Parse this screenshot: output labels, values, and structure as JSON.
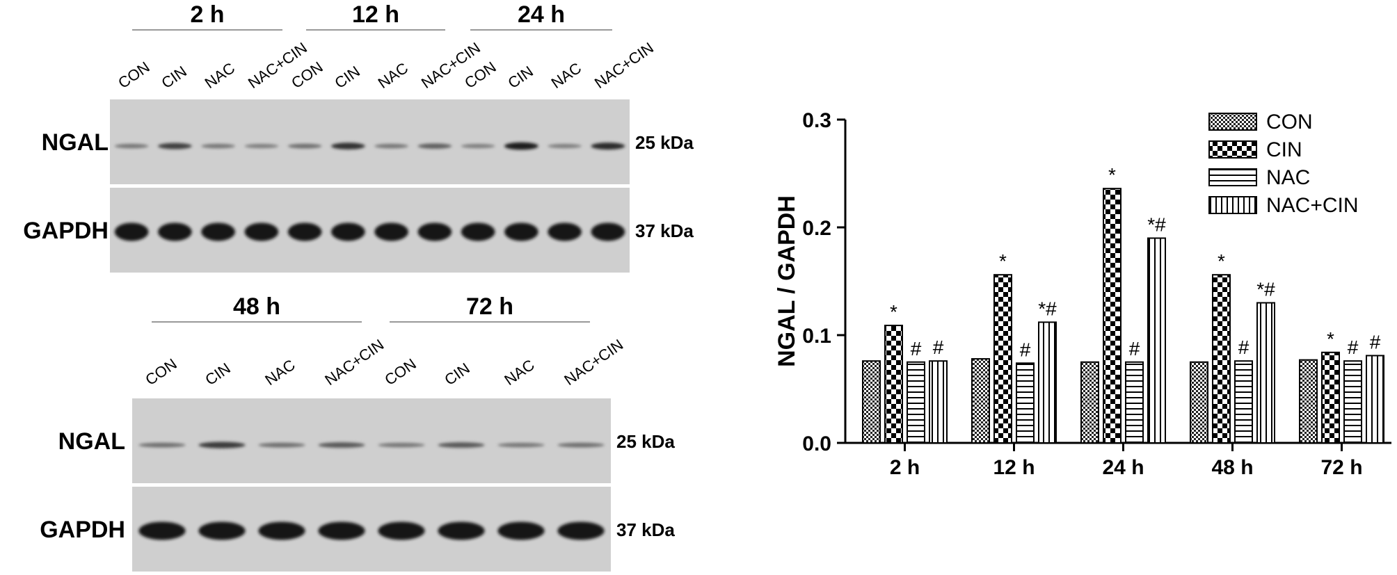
{
  "blots": {
    "top": {
      "timepoints": [
        "2 h",
        "12 h",
        "24 h"
      ],
      "lanes": [
        "CON",
        "CIN",
        "NAC",
        "NAC+CIN",
        "CON",
        "CIN",
        "NAC",
        "NAC+CIN",
        "CON",
        "CIN",
        "NAC",
        "NAC+CIN"
      ],
      "rows": [
        {
          "label": "NGAL",
          "marker": "25 kDa",
          "band_intensity": [
            0.35,
            0.7,
            0.35,
            0.3,
            0.4,
            0.8,
            0.35,
            0.5,
            0.3,
            0.95,
            0.3,
            0.85
          ]
        },
        {
          "label": "GAPDH",
          "marker": "37 kDa",
          "band_intensity": [
            1,
            1,
            1,
            1,
            1,
            1,
            1,
            1,
            1,
            1,
            1,
            1
          ]
        }
      ]
    },
    "bottom": {
      "timepoints": [
        "48 h",
        "72 h"
      ],
      "lanes": [
        "CON",
        "CIN",
        "NAC",
        "NAC+CIN",
        "CON",
        "CIN",
        "NAC",
        "NAC+CIN"
      ],
      "rows": [
        {
          "label": "NGAL",
          "marker": "25 kDa",
          "band_intensity": [
            0.4,
            0.75,
            0.4,
            0.55,
            0.35,
            0.55,
            0.35,
            0.4
          ]
        },
        {
          "label": "GAPDH",
          "marker": "37 kDa",
          "band_intensity": [
            1,
            1,
            1,
            1,
            1,
            1,
            1,
            1
          ]
        }
      ]
    }
  },
  "chart_data": {
    "type": "bar",
    "ylabel": "NGAL / GAPDH",
    "xlabel": "",
    "ylim": [
      0,
      0.3
    ],
    "yticks": [
      "0.0",
      "0.1",
      "0.2",
      "0.3"
    ],
    "categories": [
      "2 h",
      "12 h",
      "24 h",
      "48 h",
      "72 h"
    ],
    "legend_position": "top-right",
    "series": [
      {
        "name": "CON",
        "pattern": "checker-small",
        "values": [
          0.076,
          0.078,
          0.075,
          0.075,
          0.077
        ],
        "marks": [
          "",
          "",
          "",
          "",
          ""
        ]
      },
      {
        "name": "CIN",
        "pattern": "checker-large",
        "values": [
          0.109,
          0.156,
          0.236,
          0.156,
          0.084
        ],
        "marks": [
          "*",
          "*",
          "*",
          "*",
          "*"
        ]
      },
      {
        "name": "NAC",
        "pattern": "horizontal-lines",
        "values": [
          0.075,
          0.074,
          0.075,
          0.076,
          0.076
        ],
        "marks": [
          "#",
          "#",
          "#",
          "#",
          "#"
        ]
      },
      {
        "name": "NAC+CIN",
        "pattern": "vertical-lines",
        "values": [
          0.076,
          0.112,
          0.19,
          0.13,
          0.081
        ],
        "marks": [
          "#",
          "*#",
          "*#",
          "*#",
          "#"
        ]
      }
    ]
  }
}
